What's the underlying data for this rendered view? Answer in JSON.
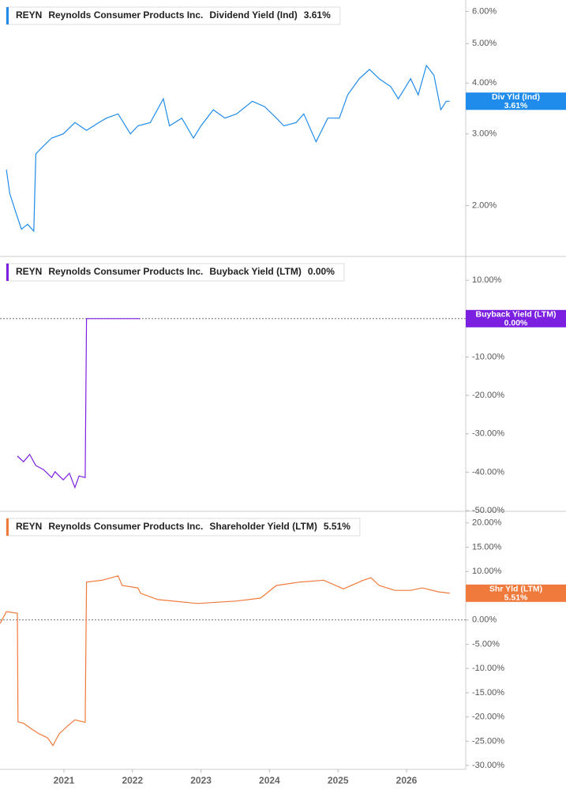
{
  "chart_data": [
    {
      "type": "line",
      "ticker": "REYN",
      "company": "Reynolds Consumer Products Inc.",
      "log_scale": true,
      "badge_label": "Div Yld (Ind)",
      "legend_value": {
        "value": 3.61,
        "label": "3.61%"
      },
      "xlim": [
        2020.067,
        2026.864
      ],
      "ylim": [
        1.5,
        6.4
      ],
      "yticks": [
        {
          "value": 6,
          "label": "6.00%"
        },
        {
          "value": 5,
          "label": "5.00%"
        },
        {
          "value": 4,
          "label": "4.00%"
        },
        {
          "value": 3,
          "label": "3.00%"
        },
        {
          "value": 2,
          "label": "2.00%"
        }
      ],
      "series": [
        {
          "name": "Dividend Yield (Ind)",
          "color": "#1f8ceb",
          "x": [
            2020.16,
            2020.21,
            2020.3,
            2020.38,
            2020.47,
            2020.56,
            2020.59,
            2020.7,
            2020.82,
            2020.99,
            2021.16,
            2021.33,
            2021.51,
            2021.62,
            2021.79,
            2021.97,
            2022.08,
            2022.26,
            2022.45,
            2022.54,
            2022.72,
            2022.89,
            2023.0,
            2023.18,
            2023.35,
            2023.52,
            2023.75,
            2023.93,
            2024.1,
            2024.21,
            2024.39,
            2024.5,
            2024.68,
            2024.85,
            2025.02,
            2025.14,
            2025.31,
            2025.46,
            2025.6,
            2025.77,
            2025.88,
            2026.06,
            2026.17,
            2026.29,
            2026.4,
            2026.5,
            2026.58,
            2026.63
          ],
          "values": [
            2.45,
            2.14,
            1.92,
            1.75,
            1.8,
            1.73,
            2.68,
            2.8,
            2.93,
            3.0,
            3.2,
            3.06,
            3.2,
            3.28,
            3.36,
            3.0,
            3.14,
            3.2,
            3.66,
            3.14,
            3.28,
            2.93,
            3.14,
            3.44,
            3.28,
            3.36,
            3.61,
            3.5,
            3.28,
            3.14,
            3.2,
            3.36,
            2.87,
            3.28,
            3.28,
            3.74,
            4.1,
            4.32,
            4.1,
            3.92,
            3.66,
            4.1,
            3.74,
            4.42,
            4.18,
            3.44,
            3.61,
            3.61
          ]
        }
      ]
    },
    {
      "type": "line",
      "ticker": "REYN",
      "company": "Reynolds Consumer Products Inc.",
      "badge_label": "Buyback Yield (LTM)",
      "legend_value": {
        "value": 0,
        "label": "0.00%"
      },
      "xlim": [
        2020.067,
        2026.864
      ],
      "ylim": [
        -50.2,
        16.2
      ],
      "yticks": [
        {
          "value": 10,
          "label": "10.00%"
        },
        {
          "value": -10,
          "label": "-10.00%"
        },
        {
          "value": -20,
          "label": "-20.00%"
        },
        {
          "value": -30,
          "label": "-30.00%"
        },
        {
          "value": -40,
          "label": "-40.00%"
        },
        {
          "value": -50,
          "label": "-50.00%"
        }
      ],
      "series": [
        {
          "name": "Buyback Yield (LTM)",
          "color": "#7b1fe0",
          "x": [
            2020.32,
            2020.41,
            2020.5,
            2020.59,
            2020.7,
            2020.82,
            2020.87,
            2020.99,
            2021.08,
            2021.16,
            2021.22,
            2021.31,
            2021.33,
            2021.68,
            2022.11
          ],
          "values": [
            -35.8,
            -37.3,
            -35.4,
            -38.3,
            -39.3,
            -41.4,
            -39.9,
            -42.0,
            -40.3,
            -44.0,
            -41.0,
            -41.4,
            0,
            0,
            0
          ]
        }
      ]
    },
    {
      "type": "line",
      "ticker": "REYN",
      "company": "Reynolds Consumer Products Inc.",
      "badge_label": "Shr Yld (LTM)",
      "legend_value": {
        "value": 5.51,
        "label": "5.51%"
      },
      "xlim": [
        2020.067,
        2026.864
      ],
      "ylim": [
        -30.8,
        22.4
      ],
      "xticks": [
        2021,
        2022,
        2023,
        2024,
        2025,
        2026
      ],
      "yticks": [
        {
          "value": 20,
          "label": "20.00%"
        },
        {
          "value": 15,
          "label": "15.00%"
        },
        {
          "value": 10,
          "label": "10.00%"
        },
        {
          "value": 5,
          "label": "5.00%"
        },
        {
          "value": 0,
          "label": "0.00%"
        },
        {
          "value": -5,
          "label": "-5.00%"
        },
        {
          "value": -10,
          "label": "-10.00%"
        },
        {
          "value": -15,
          "label": "-15.00%"
        },
        {
          "value": -20,
          "label": "-20.00%"
        },
        {
          "value": -25,
          "label": "-25.00%"
        },
        {
          "value": -30,
          "label": "-30.00%"
        }
      ],
      "series": [
        {
          "name": "Shareholder Yield (LTM)",
          "color": "#f07a3c",
          "x": [
            2020.07,
            2020.16,
            2020.32,
            2020.33,
            2020.41,
            2020.53,
            2020.64,
            2020.76,
            2020.84,
            2020.93,
            2021.05,
            2021.16,
            2021.31,
            2021.33,
            2021.56,
            2021.79,
            2021.85,
            2022.08,
            2022.12,
            2022.37,
            2022.95,
            2023.52,
            2023.87,
            2024.1,
            2024.44,
            2024.79,
            2025.08,
            2025.37,
            2025.48,
            2025.6,
            2025.83,
            2026.06,
            2026.23,
            2026.46,
            2026.63
          ],
          "values": [
            -0.7,
            1.7,
            1.4,
            -21.0,
            -21.3,
            -22.5,
            -23.5,
            -24.3,
            -25.9,
            -23.5,
            -21.9,
            -20.6,
            -21.1,
            7.8,
            8.2,
            9.1,
            7.1,
            6.6,
            5.5,
            4.2,
            3.4,
            3.9,
            4.5,
            7.1,
            7.8,
            8.2,
            6.4,
            8.2,
            8.7,
            7.1,
            6.1,
            6.1,
            6.6,
            5.8,
            5.5
          ]
        }
      ]
    }
  ]
}
